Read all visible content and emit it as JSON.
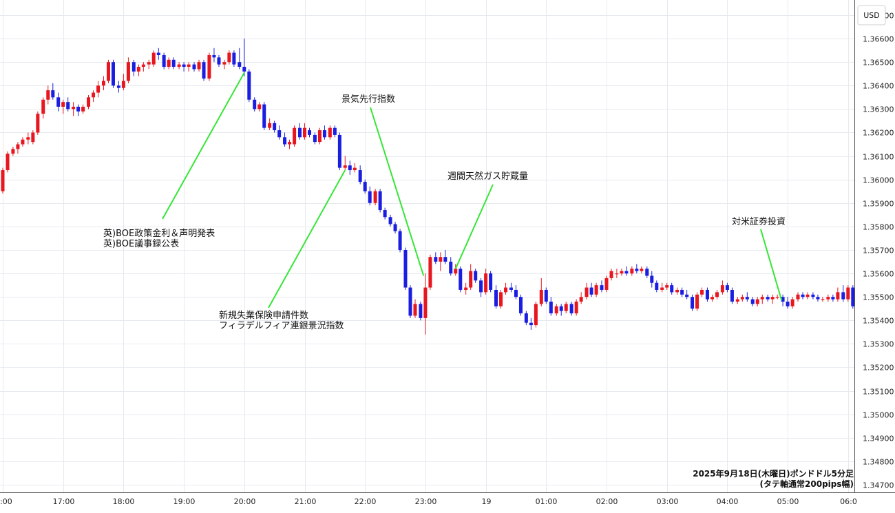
{
  "chart_data": {
    "type": "candlestick",
    "currency_label": "USD",
    "ylim": [
      1.3468,
      1.3675
    ],
    "y_ticks": [
      "1.36700",
      "1.36600",
      "1.36500",
      "1.36400",
      "1.36300",
      "1.36200",
      "1.36100",
      "1.36000",
      "1.35900",
      "1.35800",
      "1.35700",
      "1.35600",
      "1.35500",
      "1.35400",
      "1.35300",
      "1.35200",
      "1.35100",
      "1.35000",
      "1.34900",
      "1.34800",
      "1.34700"
    ],
    "x_ticks": [
      ":00",
      "17:00",
      "18:00",
      "19:00",
      "20:00",
      "21:00",
      "22:00",
      "23:00",
      "19",
      "01:00",
      "02:00",
      "03:00",
      "04:00",
      "05:00",
      "06:0"
    ],
    "footer_line1": "2025年9月18日(木曜日)ポンドドル5分足",
    "footer_line2": "(タテ軸通常200pips幅)",
    "annotations": [
      {
        "lines": [
          "英)BOE政策金利＆声明発表",
          "英)BOE議事録公表"
        ],
        "time": 20.0,
        "price": 1.36455
      },
      {
        "lines": [
          "新規失業保険申請件数",
          "フィラデルフィア連銀景況指数"
        ],
        "time": 21.67,
        "price": 1.3604
      },
      {
        "lines": [
          "景気先行指数"
        ],
        "time": 22.97,
        "price": 1.3559
      },
      {
        "lines": [
          "週間天然ガス貯蔵量"
        ],
        "time": 23.5,
        "price": 1.3562
      },
      {
        "lines": [
          "対米証券投資"
        ],
        "time": 28.9,
        "price": 1.35485
      }
    ],
    "bull_color": "#e8161e",
    "bear_color": "#1a1ee0",
    "line_color": "#35e635",
    "candles": [
      [
        16.0,
        1.3595,
        1.3605,
        1.3594,
        1.3604
      ],
      [
        16.08,
        1.3604,
        1.3612,
        1.3603,
        1.3611
      ],
      [
        16.17,
        1.3611,
        1.3614,
        1.361,
        1.3613
      ],
      [
        16.25,
        1.3613,
        1.3616,
        1.3611,
        1.3615
      ],
      [
        16.33,
        1.3615,
        1.3618,
        1.3614,
        1.3617
      ],
      [
        16.42,
        1.3617,
        1.362,
        1.3615,
        1.3618
      ],
      [
        16.5,
        1.3616,
        1.3621,
        1.3615,
        1.362
      ],
      [
        16.58,
        1.362,
        1.3629,
        1.3619,
        1.3628
      ],
      [
        16.67,
        1.3628,
        1.3635,
        1.3626,
        1.3634
      ],
      [
        16.75,
        1.3634,
        1.364,
        1.3632,
        1.3638
      ],
      [
        16.83,
        1.3638,
        1.3641,
        1.3634,
        1.3635
      ],
      [
        16.92,
        1.3635,
        1.3637,
        1.3629,
        1.3631
      ],
      [
        17.0,
        1.3631,
        1.3634,
        1.3628,
        1.3633
      ],
      [
        17.08,
        1.3633,
        1.3635,
        1.3629,
        1.363
      ],
      [
        17.17,
        1.363,
        1.3633,
        1.3627,
        1.3631
      ],
      [
        17.25,
        1.3631,
        1.3632,
        1.3627,
        1.3629
      ],
      [
        17.33,
        1.3629,
        1.3632,
        1.3628,
        1.3631
      ],
      [
        17.42,
        1.3631,
        1.3636,
        1.363,
        1.3635
      ],
      [
        17.5,
        1.3635,
        1.3638,
        1.3633,
        1.3637
      ],
      [
        17.58,
        1.3637,
        1.3642,
        1.3635,
        1.364
      ],
      [
        17.67,
        1.364,
        1.3644,
        1.3638,
        1.3642
      ],
      [
        17.75,
        1.3642,
        1.3651,
        1.3641,
        1.365
      ],
      [
        17.83,
        1.365,
        1.3651,
        1.3639,
        1.364
      ],
      [
        17.92,
        1.364,
        1.3642,
        1.3637,
        1.3639
      ],
      [
        18.0,
        1.3639,
        1.3645,
        1.3638,
        1.3642
      ],
      [
        18.08,
        1.3642,
        1.3652,
        1.3641,
        1.365
      ],
      [
        18.17,
        1.365,
        1.3651,
        1.3644,
        1.3646
      ],
      [
        18.25,
        1.3646,
        1.3649,
        1.3644,
        1.3648
      ],
      [
        18.33,
        1.3648,
        1.365,
        1.3646,
        1.3649
      ],
      [
        18.42,
        1.3649,
        1.3651,
        1.3647,
        1.365
      ],
      [
        18.5,
        1.3649,
        1.3655,
        1.3648,
        1.3654
      ],
      [
        18.58,
        1.3654,
        1.3656,
        1.3651,
        1.3653
      ],
      [
        18.67,
        1.3653,
        1.3654,
        1.3647,
        1.3648
      ],
      [
        18.75,
        1.3648,
        1.3652,
        1.3647,
        1.3651
      ],
      [
        18.83,
        1.3651,
        1.3652,
        1.3647,
        1.3648
      ],
      [
        18.92,
        1.3648,
        1.365,
        1.3647,
        1.3649
      ],
      [
        19.0,
        1.3649,
        1.365,
        1.3646,
        1.3648
      ],
      [
        19.08,
        1.3648,
        1.365,
        1.3646,
        1.3649
      ],
      [
        19.17,
        1.3649,
        1.365,
        1.3646,
        1.3647
      ],
      [
        19.25,
        1.3647,
        1.3651,
        1.3646,
        1.365
      ],
      [
        19.33,
        1.365,
        1.3651,
        1.3642,
        1.3643
      ],
      [
        19.42,
        1.3643,
        1.3654,
        1.3642,
        1.3653
      ],
      [
        19.5,
        1.3653,
        1.3656,
        1.365,
        1.3652
      ],
      [
        19.58,
        1.3652,
        1.3653,
        1.3648,
        1.3649
      ],
      [
        19.67,
        1.3649,
        1.3651,
        1.3647,
        1.365
      ],
      [
        19.75,
        1.365,
        1.3655,
        1.3649,
        1.3654
      ],
      [
        19.83,
        1.3654,
        1.3655,
        1.3648,
        1.3649
      ],
      [
        19.92,
        1.365,
        1.3656,
        1.3647,
        1.3648
      ],
      [
        20.0,
        1.3648,
        1.366,
        1.3644,
        1.3646
      ],
      [
        20.08,
        1.3646,
        1.3647,
        1.3633,
        1.3634
      ],
      [
        20.17,
        1.3634,
        1.3635,
        1.3629,
        1.363
      ],
      [
        20.25,
        1.363,
        1.3633,
        1.3629,
        1.3632
      ],
      [
        20.33,
        1.3632,
        1.3633,
        1.3621,
        1.3622
      ],
      [
        20.42,
        1.3622,
        1.3626,
        1.3621,
        1.3624
      ],
      [
        20.5,
        1.3624,
        1.3625,
        1.362,
        1.3621
      ],
      [
        20.58,
        1.3621,
        1.3623,
        1.3617,
        1.3618
      ],
      [
        20.67,
        1.3618,
        1.362,
        1.3614,
        1.3615
      ],
      [
        20.75,
        1.3615,
        1.3617,
        1.3613,
        1.3616
      ],
      [
        20.83,
        1.3615,
        1.3623,
        1.3614,
        1.3622
      ],
      [
        20.92,
        1.3622,
        1.3624,
        1.3617,
        1.3618
      ],
      [
        21.0,
        1.3618,
        1.3624,
        1.3617,
        1.3622
      ],
      [
        21.08,
        1.3621,
        1.3622,
        1.3618,
        1.3619
      ],
      [
        21.17,
        1.3619,
        1.362,
        1.3615,
        1.3616
      ],
      [
        21.25,
        1.3616,
        1.3622,
        1.3615,
        1.3621
      ],
      [
        21.33,
        1.3621,
        1.3623,
        1.3617,
        1.3618
      ],
      [
        21.42,
        1.3618,
        1.3623,
        1.3617,
        1.3622
      ],
      [
        21.5,
        1.3622,
        1.3623,
        1.3618,
        1.3619
      ],
      [
        21.58,
        1.3619,
        1.362,
        1.3604,
        1.3605
      ],
      [
        21.67,
        1.3605,
        1.361,
        1.3604,
        1.3606
      ],
      [
        21.75,
        1.3606,
        1.3608,
        1.3602,
        1.3604
      ],
      [
        21.83,
        1.3604,
        1.3607,
        1.3603,
        1.3605
      ],
      [
        21.92,
        1.3604,
        1.3606,
        1.3598,
        1.3599
      ],
      [
        22.0,
        1.3599,
        1.36,
        1.3594,
        1.3595
      ],
      [
        22.08,
        1.3595,
        1.3597,
        1.3589,
        1.359
      ],
      [
        22.17,
        1.359,
        1.3596,
        1.3589,
        1.3595
      ],
      [
        22.25,
        1.3595,
        1.3596,
        1.3586,
        1.3587
      ],
      [
        22.33,
        1.3587,
        1.3588,
        1.3583,
        1.3584
      ],
      [
        22.42,
        1.3584,
        1.3585,
        1.358,
        1.3581
      ],
      [
        22.5,
        1.3581,
        1.3582,
        1.3577,
        1.3578
      ],
      [
        22.58,
        1.3578,
        1.3579,
        1.3569,
        1.357
      ],
      [
        22.67,
        1.357,
        1.3571,
        1.3553,
        1.3554
      ],
      [
        22.75,
        1.3554,
        1.3555,
        1.3541,
        1.3542
      ],
      [
        22.83,
        1.3542,
        1.3549,
        1.3541,
        1.3547
      ],
      [
        22.92,
        1.3547,
        1.3548,
        1.354,
        1.3541
      ],
      [
        23.0,
        1.3541,
        1.356,
        1.3534,
        1.3554
      ],
      [
        23.08,
        1.3554,
        1.3568,
        1.3553,
        1.3567
      ],
      [
        23.17,
        1.3567,
        1.3569,
        1.3564,
        1.3565
      ],
      [
        23.25,
        1.3565,
        1.3569,
        1.3561,
        1.3567
      ],
      [
        23.33,
        1.3567,
        1.357,
        1.3564,
        1.3565
      ],
      [
        23.42,
        1.3565,
        1.3567,
        1.3559,
        1.356
      ],
      [
        23.5,
        1.356,
        1.3564,
        1.3559,
        1.3562
      ],
      [
        23.58,
        1.3562,
        1.3563,
        1.3552,
        1.3553
      ],
      [
        23.67,
        1.3553,
        1.3556,
        1.3551,
        1.3554
      ],
      [
        23.75,
        1.3554,
        1.3564,
        1.3553,
        1.3561
      ],
      [
        23.83,
        1.3561,
        1.3562,
        1.3556,
        1.3557
      ],
      [
        23.92,
        1.3557,
        1.3558,
        1.355,
        1.3552
      ],
      [
        24.0,
        1.3552,
        1.3562,
        1.3551,
        1.356
      ],
      [
        24.08,
        1.356,
        1.3561,
        1.3552,
        1.3553
      ],
      [
        24.17,
        1.3553,
        1.3555,
        1.3545,
        1.3546
      ],
      [
        24.25,
        1.3546,
        1.3553,
        1.3545,
        1.3552
      ],
      [
        24.33,
        1.3552,
        1.3556,
        1.3551,
        1.3554
      ],
      [
        24.42,
        1.3554,
        1.3556,
        1.3552,
        1.3553
      ],
      [
        24.5,
        1.3553,
        1.3555,
        1.3549,
        1.355
      ],
      [
        24.58,
        1.355,
        1.3551,
        1.3542,
        1.3543
      ],
      [
        24.67,
        1.3543,
        1.3544,
        1.3538,
        1.3539
      ],
      [
        24.75,
        1.3539,
        1.3541,
        1.3536,
        1.3538
      ],
      [
        24.83,
        1.3538,
        1.3548,
        1.3537,
        1.3547
      ],
      [
        24.92,
        1.3547,
        1.3558,
        1.3546,
        1.3553
      ],
      [
        25.0,
        1.3553,
        1.3554,
        1.3547,
        1.3548
      ],
      [
        25.08,
        1.3548,
        1.355,
        1.3542,
        1.3543
      ],
      [
        25.17,
        1.3543,
        1.3547,
        1.3542,
        1.3546
      ],
      [
        25.25,
        1.3546,
        1.3547,
        1.3542,
        1.3544
      ],
      [
        25.33,
        1.3544,
        1.3548,
        1.3543,
        1.3547
      ],
      [
        25.42,
        1.3547,
        1.3548,
        1.3542,
        1.3543
      ],
      [
        25.5,
        1.3543,
        1.3549,
        1.3542,
        1.3548
      ],
      [
        25.58,
        1.3548,
        1.3552,
        1.3547,
        1.355
      ],
      [
        25.67,
        1.355,
        1.3556,
        1.3549,
        1.3554
      ],
      [
        25.75,
        1.3554,
        1.3556,
        1.355,
        1.3551
      ],
      [
        25.83,
        1.3551,
        1.3556,
        1.355,
        1.3555
      ],
      [
        25.92,
        1.3555,
        1.3557,
        1.3552,
        1.3553
      ],
      [
        26.0,
        1.3553,
        1.3559,
        1.3552,
        1.3558
      ],
      [
        26.08,
        1.3558,
        1.3562,
        1.3557,
        1.3561
      ],
      [
        26.17,
        1.356,
        1.3562,
        1.3558,
        1.356
      ],
      [
        26.25,
        1.356,
        1.3562,
        1.3559,
        1.3561
      ],
      [
        26.33,
        1.3561,
        1.3563,
        1.3559,
        1.356
      ],
      [
        26.42,
        1.356,
        1.3563,
        1.3559,
        1.3562
      ],
      [
        26.5,
        1.3562,
        1.3564,
        1.356,
        1.3561
      ],
      [
        26.58,
        1.3561,
        1.3563,
        1.356,
        1.3562
      ],
      [
        26.67,
        1.3562,
        1.3563,
        1.3558,
        1.3559
      ],
      [
        26.75,
        1.3559,
        1.3561,
        1.3554,
        1.3556
      ],
      [
        26.83,
        1.3556,
        1.3557,
        1.3552,
        1.3553
      ],
      [
        26.92,
        1.3553,
        1.3556,
        1.3552,
        1.3554
      ],
      [
        27.0,
        1.3554,
        1.3556,
        1.3553,
        1.3555
      ],
      [
        27.08,
        1.3555,
        1.3556,
        1.3551,
        1.3552
      ],
      [
        27.17,
        1.3552,
        1.3554,
        1.3551,
        1.3553
      ],
      [
        27.25,
        1.3553,
        1.3554,
        1.355,
        1.3551
      ],
      [
        27.33,
        1.3551,
        1.3553,
        1.3549,
        1.355
      ],
      [
        27.42,
        1.355,
        1.3551,
        1.3544,
        1.3545
      ],
      [
        27.5,
        1.3545,
        1.3552,
        1.3544,
        1.3551
      ],
      [
        27.58,
        1.3551,
        1.3554,
        1.355,
        1.3553
      ],
      [
        27.67,
        1.3553,
        1.3554,
        1.3548,
        1.3549
      ],
      [
        27.75,
        1.3549,
        1.3551,
        1.3548,
        1.355
      ],
      [
        27.83,
        1.355,
        1.3553,
        1.3549,
        1.3552
      ],
      [
        27.92,
        1.3552,
        1.3557,
        1.3551,
        1.3555
      ],
      [
        28.0,
        1.3555,
        1.3556,
        1.3552,
        1.3553
      ],
      [
        28.08,
        1.3553,
        1.3554,
        1.3547,
        1.3548
      ],
      [
        28.17,
        1.3548,
        1.355,
        1.3547,
        1.3549
      ],
      [
        28.25,
        1.3549,
        1.3551,
        1.3548,
        1.355
      ],
      [
        28.33,
        1.355,
        1.3552,
        1.3548,
        1.3549
      ],
      [
        28.42,
        1.3549,
        1.355,
        1.3546,
        1.3547
      ],
      [
        28.5,
        1.3547,
        1.355,
        1.3546,
        1.3549
      ],
      [
        28.58,
        1.3549,
        1.3551,
        1.3547,
        1.355
      ],
      [
        28.67,
        1.355,
        1.3551,
        1.3548,
        1.3549
      ],
      [
        28.75,
        1.3549,
        1.3551,
        1.3547,
        1.355
      ],
      [
        28.83,
        1.355,
        1.3551,
        1.3549,
        1.355
      ],
      [
        28.92,
        1.355,
        1.3551,
        1.3546,
        1.3548
      ],
      [
        29.0,
        1.3548,
        1.355,
        1.3545,
        1.3546
      ],
      [
        29.08,
        1.3546,
        1.355,
        1.3545,
        1.3549
      ],
      [
        29.17,
        1.3549,
        1.3552,
        1.3548,
        1.3551
      ],
      [
        29.25,
        1.3551,
        1.3552,
        1.3549,
        1.355
      ],
      [
        29.33,
        1.355,
        1.3552,
        1.3549,
        1.3551
      ],
      [
        29.42,
        1.3551,
        1.3552,
        1.3549,
        1.355
      ],
      [
        29.5,
        1.355,
        1.3551,
        1.3548,
        1.3549
      ],
      [
        29.58,
        1.3549,
        1.355,
        1.3548,
        1.3549
      ],
      [
        29.67,
        1.3549,
        1.3551,
        1.3548,
        1.355
      ],
      [
        29.75,
        1.355,
        1.3551,
        1.3548,
        1.3549
      ],
      [
        29.83,
        1.3549,
        1.3554,
        1.3548,
        1.3552
      ],
      [
        29.92,
        1.3552,
        1.3555,
        1.3548,
        1.3549
      ],
      [
        30.0,
        1.3549,
        1.3555,
        1.3548,
        1.3554
      ],
      [
        30.08,
        1.3554,
        1.3555,
        1.3545,
        1.3546
      ]
    ]
  }
}
